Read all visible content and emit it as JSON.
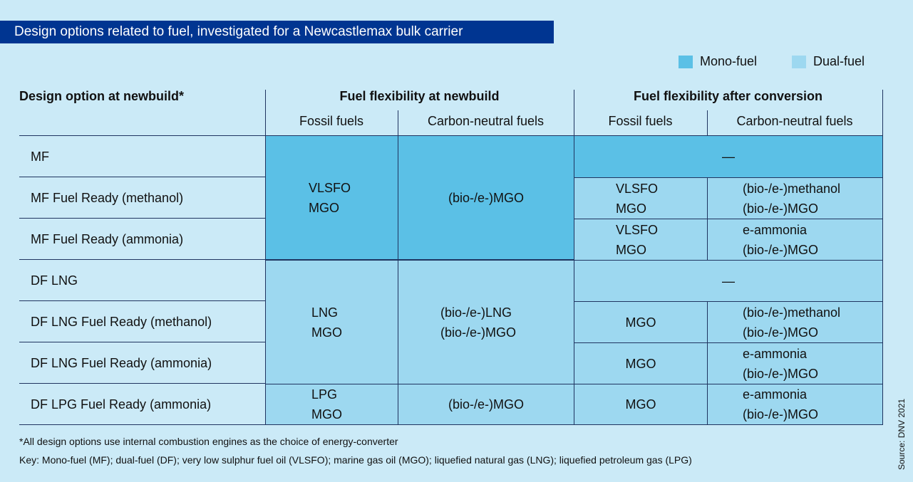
{
  "title": "Design options related to fuel, investigated for a Newcastlemax bulk carrier",
  "legend": {
    "mono": "Mono-fuel",
    "dual": "Dual-fuel",
    "mono_color": "#5bc0e6",
    "dual_color": "#9dd8f0"
  },
  "headers": {
    "col1": "Design option at newbuild*",
    "newbuild": "Fuel flexibility at newbuild",
    "conversion": "Fuel flexibility after conversion",
    "fossil": "Fossil fuels",
    "carbon": "Carbon-neutral fuels"
  },
  "rows": [
    "MF",
    "MF Fuel Ready (methanol)",
    "MF Fuel Ready (ammonia)",
    "DF LNG",
    "DF LNG Fuel Ready (methanol)",
    "DF LNG Fuel Ready (ammonia)",
    "DF LPG Fuel Ready (ammonia)"
  ],
  "cells": {
    "mf_fossil": [
      "VLSFO",
      "MGO"
    ],
    "mf_carbon": "(bio-/e-)MGO",
    "dash": "—",
    "mfm_conv_fossil": [
      "VLSFO",
      "MGO"
    ],
    "mfm_conv_carbon": [
      "(bio-/e-)methanol",
      "(bio-/e-)MGO"
    ],
    "mfa_conv_fossil": [
      "VLSFO",
      "MGO"
    ],
    "mfa_conv_carbon": [
      "e-ammonia",
      "(bio-/e-)MGO"
    ],
    "df_fossil": [
      "LNG",
      "MGO"
    ],
    "df_carbon": [
      "(bio-/e-)LNG",
      "(bio-/e-)MGO"
    ],
    "dfm_conv_fossil": "MGO",
    "dfm_conv_carbon": [
      "(bio-/e-)methanol",
      "(bio-/e-)MGO"
    ],
    "dfa_conv_fossil": "MGO",
    "dfa_conv_carbon": [
      "e-ammonia",
      "(bio-/e-)MGO"
    ],
    "lpg_fossil": [
      "LPG",
      "MGO"
    ],
    "lpg_carbon": "(bio-/e-)MGO",
    "lpg_conv_fossil": "MGO",
    "lpg_conv_carbon": [
      "e-ammonia",
      "(bio-/e-)MGO"
    ]
  },
  "footnote": "*All design options use internal combustion engines as the choice of energy-converter",
  "key": "Key: Mono-fuel (MF); dual-fuel (DF); very low sulphur fuel oil (VLSFO); marine gas oil (MGO); liquefied natural gas (LNG); liquefied petroleum gas (LPG)",
  "source": "Source: DNV 2021"
}
